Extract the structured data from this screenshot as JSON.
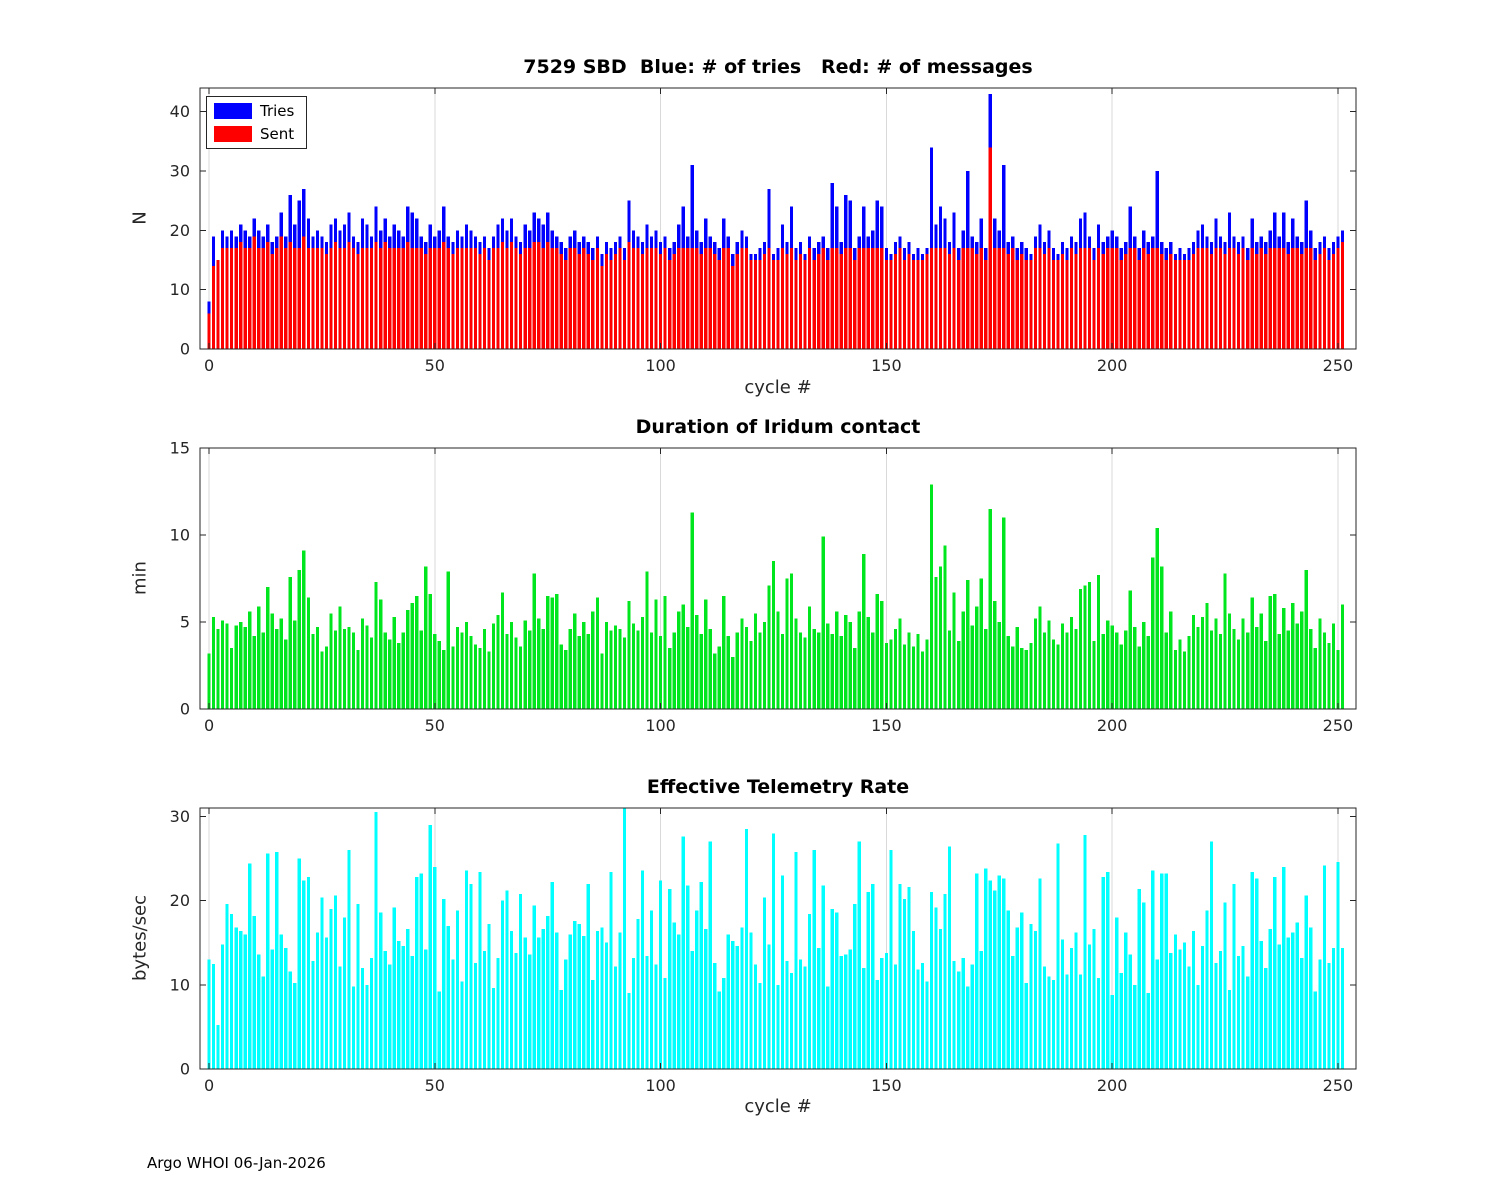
{
  "figure": {
    "footer": "Argo WHOI 06-Jan-2026",
    "background": "#ffffff",
    "axis_color": "#262626",
    "grid_color": "#d9d9d9"
  },
  "chart_data": [
    {
      "id": "sbd",
      "type": "bar",
      "title": "7529 SBD  Blue: # of tries   Red: # of messages",
      "xlabel": "cycle #",
      "ylabel": "N",
      "x_start": 0,
      "xlim": [
        -2,
        254
      ],
      "ylim": [
        0,
        44
      ],
      "xticks": [
        0,
        50,
        100,
        150,
        200,
        250
      ],
      "yticks": [
        0,
        10,
        20,
        30,
        40
      ],
      "grid": "vertical",
      "legend": {
        "position": "northwest"
      },
      "series": [
        {
          "name": "Tries",
          "color": "#0000ff",
          "values": [
            8,
            19,
            15,
            20,
            19,
            20,
            19,
            21,
            20,
            19,
            22,
            20,
            19,
            21,
            18,
            19,
            23,
            19,
            26,
            21,
            25,
            27,
            22,
            19,
            20,
            19,
            18,
            21,
            22,
            20,
            21,
            23,
            19,
            18,
            22,
            21,
            19,
            24,
            20,
            22,
            19,
            21,
            20,
            19,
            24,
            23,
            22,
            19,
            18,
            21,
            19,
            20,
            24,
            19,
            18,
            20,
            19,
            21,
            20,
            19,
            18,
            19,
            17,
            19,
            21,
            22,
            20,
            22,
            19,
            18,
            21,
            20,
            23,
            22,
            21,
            23,
            20,
            19,
            18,
            17,
            19,
            20,
            18,
            19,
            18,
            17,
            19,
            16,
            18,
            17,
            18,
            19,
            17,
            25,
            20,
            19,
            18,
            21,
            19,
            20,
            18,
            19,
            17,
            18,
            21,
            24,
            19,
            31,
            20,
            18,
            22,
            19,
            18,
            17,
            22,
            19,
            16,
            18,
            20,
            19,
            16,
            16,
            17,
            18,
            27,
            16,
            17,
            21,
            18,
            24,
            17,
            18,
            16,
            19,
            17,
            18,
            19,
            17,
            28,
            24,
            18,
            26,
            25,
            17,
            19,
            24,
            19,
            20,
            25,
            24,
            17,
            16,
            18,
            19,
            17,
            18,
            16,
            17,
            16,
            17,
            34,
            21,
            24,
            22,
            18,
            23,
            17,
            20,
            30,
            19,
            18,
            22,
            17,
            43,
            22,
            20,
            31,
            18,
            19,
            17,
            18,
            17,
            16,
            19,
            21,
            18,
            20,
            17,
            16,
            18,
            17,
            19,
            18,
            22,
            23,
            19,
            17,
            21,
            18,
            19,
            20,
            19,
            17,
            18,
            24,
            19,
            17,
            20,
            18,
            19,
            30,
            18,
            17,
            18,
            16,
            17,
            16,
            17,
            18,
            20,
            21,
            19,
            18,
            22,
            19,
            18,
            23,
            19,
            18,
            19,
            17,
            22,
            18,
            19,
            18,
            20,
            23,
            19,
            23,
            18,
            22,
            19,
            18,
            25,
            20,
            17,
            18,
            19,
            17,
            18,
            19,
            20
          ]
        },
        {
          "name": "Sent",
          "color": "#ff0000",
          "values": [
            6,
            14,
            15,
            17,
            17,
            17,
            17,
            18,
            17,
            17,
            19,
            17,
            17,
            18,
            16,
            17,
            19,
            17,
            18,
            17,
            17,
            19,
            17,
            17,
            17,
            17,
            16,
            17,
            18,
            17,
            17,
            18,
            17,
            16,
            17,
            17,
            17,
            18,
            17,
            18,
            17,
            17,
            17,
            17,
            18,
            17,
            17,
            17,
            16,
            17,
            17,
            17,
            18,
            17,
            16,
            17,
            17,
            17,
            17,
            17,
            16,
            17,
            15,
            17,
            17,
            18,
            17,
            18,
            17,
            16,
            17,
            17,
            18,
            18,
            17,
            18,
            17,
            17,
            16,
            15,
            17,
            17,
            16,
            17,
            16,
            15,
            17,
            14,
            16,
            15,
            16,
            17,
            15,
            18,
            17,
            17,
            16,
            17,
            17,
            17,
            16,
            17,
            15,
            16,
            17,
            17,
            17,
            17,
            17,
            16,
            17,
            17,
            16,
            15,
            17,
            17,
            14,
            16,
            17,
            17,
            15,
            15,
            15,
            16,
            17,
            15,
            15,
            17,
            16,
            17,
            15,
            16,
            15,
            17,
            15,
            16,
            17,
            15,
            17,
            17,
            16,
            17,
            17,
            15,
            17,
            17,
            17,
            17,
            17,
            17,
            15,
            15,
            16,
            17,
            15,
            16,
            15,
            15,
            15,
            16,
            17,
            17,
            17,
            17,
            16,
            17,
            15,
            17,
            17,
            17,
            16,
            17,
            15,
            34,
            17,
            17,
            17,
            16,
            17,
            15,
            16,
            15,
            15,
            17,
            17,
            16,
            17,
            15,
            15,
            16,
            15,
            17,
            16,
            17,
            17,
            17,
            15,
            17,
            16,
            17,
            17,
            17,
            15,
            16,
            17,
            17,
            15,
            17,
            16,
            17,
            17,
            16,
            15,
            16,
            15,
            15,
            15,
            15,
            16,
            17,
            17,
            17,
            16,
            17,
            17,
            16,
            17,
            17,
            16,
            17,
            15,
            17,
            16,
            17,
            16,
            17,
            17,
            17,
            17,
            16,
            17,
            17,
            16,
            17,
            17,
            15,
            16,
            17,
            15,
            16,
            17,
            18
          ]
        }
      ]
    },
    {
      "id": "duration",
      "type": "bar",
      "title": "Duration of Iridum contact",
      "xlabel": "",
      "ylabel": "min",
      "x_start": 0,
      "xlim": [
        -2,
        254
      ],
      "ylim": [
        0,
        15
      ],
      "xticks": [
        0,
        50,
        100,
        150,
        200,
        250
      ],
      "yticks": [
        0,
        5,
        10,
        15
      ],
      "grid": "vertical",
      "series": [
        {
          "name": "Duration",
          "color": "#00e61e",
          "values": [
            3.2,
            5.3,
            4.6,
            5.1,
            4.9,
            3.5,
            4.8,
            5.0,
            4.7,
            5.6,
            4.2,
            5.9,
            4.4,
            7.0,
            5.5,
            4.6,
            5.2,
            4.0,
            7.6,
            5.1,
            8.0,
            9.1,
            6.4,
            4.3,
            4.7,
            3.3,
            3.6,
            5.5,
            4.5,
            5.9,
            4.6,
            4.7,
            4.4,
            3.4,
            5.2,
            4.8,
            4.1,
            7.3,
            6.3,
            4.4,
            4.0,
            5.3,
            3.8,
            4.4,
            5.7,
            6.1,
            6.5,
            4.5,
            8.2,
            6.6,
            4.3,
            3.9,
            3.4,
            7.9,
            3.6,
            4.7,
            4.4,
            5.0,
            4.2,
            3.7,
            3.5,
            4.6,
            3.3,
            4.9,
            5.4,
            6.7,
            4.3,
            5.0,
            4.1,
            3.6,
            5.1,
            4.5,
            7.8,
            5.2,
            4.6,
            6.5,
            6.4,
            6.6,
            3.7,
            3.4,
            4.6,
            5.5,
            4.2,
            5.0,
            4.3,
            5.6,
            6.4,
            3.2,
            5.0,
            4.5,
            4.8,
            4.6,
            4.1,
            6.2,
            4.9,
            4.5,
            5.3,
            7.9,
            4.4,
            6.3,
            4.2,
            6.5,
            3.5,
            4.4,
            5.6,
            6.0,
            4.7,
            11.3,
            5.4,
            4.3,
            6.3,
            4.6,
            3.2,
            3.6,
            6.5,
            4.2,
            3.0,
            4.4,
            5.2,
            4.7,
            3.9,
            5.5,
            4.4,
            5.0,
            7.1,
            8.5,
            5.6,
            4.3,
            7.5,
            7.8,
            5.2,
            4.4,
            4.1,
            5.9,
            4.6,
            4.4,
            9.9,
            4.9,
            4.3,
            5.6,
            4.2,
            5.4,
            5.0,
            3.5,
            5.6,
            8.9,
            5.3,
            4.4,
            6.6,
            6.2,
            3.8,
            4.0,
            4.6,
            5.2,
            3.7,
            4.4,
            3.6,
            4.3,
            3.3,
            4.0,
            12.9,
            7.6,
            8.2,
            9.4,
            4.5,
            6.7,
            3.9,
            5.6,
            7.4,
            4.8,
            5.9,
            7.5,
            4.6,
            11.5,
            6.2,
            5.0,
            11.0,
            4.2,
            3.6,
            4.7,
            3.5,
            3.4,
            3.8,
            5.2,
            5.9,
            4.4,
            5.1,
            4.0,
            3.7,
            4.9,
            4.4,
            5.3,
            4.6,
            6.9,
            7.1,
            7.3,
            3.9,
            7.7,
            4.3,
            5.1,
            4.8,
            4.4,
            3.7,
            4.5,
            6.8,
            4.7,
            3.6,
            5.0,
            4.2,
            8.7,
            10.4,
            8.2,
            4.4,
            5.6,
            3.4,
            4.0,
            3.3,
            4.2,
            5.4,
            4.7,
            5.3,
            6.1,
            4.5,
            5.2,
            4.3,
            7.8,
            5.5,
            4.6,
            4.0,
            5.2,
            4.4,
            6.4,
            4.7,
            5.5,
            3.9,
            6.5,
            6.6,
            4.3,
            5.8,
            4.5,
            6.1,
            4.9,
            5.6,
            8.0,
            4.6,
            3.5,
            5.2,
            4.4,
            3.8,
            4.9,
            3.4,
            6.0
          ]
        }
      ]
    },
    {
      "id": "rate",
      "type": "bar",
      "title": "Effective Telemetry Rate",
      "xlabel": "cycle #",
      "ylabel": "bytes/sec",
      "x_start": 0,
      "xlim": [
        -2,
        254
      ],
      "ylim": [
        0,
        31
      ],
      "xticks": [
        0,
        50,
        100,
        150,
        200,
        250
      ],
      "yticks": [
        0,
        10,
        20,
        30
      ],
      "grid": "vertical",
      "series": [
        {
          "name": "Rate",
          "color": "#00ffff",
          "values": [
            13.0,
            12.5,
            5.2,
            14.8,
            19.6,
            18.4,
            16.8,
            16.4,
            16.0,
            24.4,
            18.2,
            13.6,
            11.0,
            25.6,
            14.2,
            25.8,
            16.0,
            14.4,
            11.6,
            10.2,
            25.0,
            22.4,
            22.8,
            12.8,
            16.2,
            20.4,
            15.6,
            19.0,
            20.6,
            12.2,
            18.0,
            26.0,
            9.8,
            19.6,
            12.0,
            10.0,
            13.2,
            30.5,
            18.6,
            14.0,
            12.4,
            19.2,
            15.2,
            14.6,
            16.6,
            13.4,
            22.8,
            23.2,
            14.2,
            29.0,
            24.0,
            9.2,
            20.2,
            17.0,
            13.0,
            18.8,
            10.4,
            23.6,
            22.0,
            12.6,
            23.4,
            14.0,
            17.2,
            9.6,
            13.2,
            20.0,
            21.2,
            16.4,
            13.8,
            20.8,
            15.6,
            13.6,
            19.4,
            15.6,
            16.6,
            18.2,
            22.2,
            16.2,
            9.4,
            13.0,
            16.0,
            17.6,
            17.2,
            15.8,
            22.0,
            10.6,
            16.4,
            16.8,
            15.0,
            23.4,
            12.2,
            16.2,
            31.0,
            9.0,
            13.2,
            17.8,
            23.6,
            13.4,
            18.8,
            12.4,
            22.4,
            10.8,
            21.4,
            17.4,
            16.0,
            27.6,
            21.8,
            14.0,
            18.8,
            22.2,
            16.6,
            27.0,
            12.6,
            9.2,
            10.8,
            16.0,
            15.2,
            14.6,
            16.8,
            28.5,
            16.2,
            12.4,
            10.2,
            20.4,
            14.8,
            28.0,
            10.0,
            23.0,
            12.8,
            11.4,
            25.8,
            13.0,
            12.2,
            18.4,
            26.0,
            14.4,
            21.8,
            9.8,
            19.0,
            18.6,
            13.4,
            13.6,
            14.2,
            19.6,
            27.0,
            12.0,
            21.0,
            22.0,
            10.6,
            13.2,
            13.8,
            26.0,
            12.4,
            22.0,
            20.2,
            21.6,
            16.4,
            11.8,
            12.6,
            10.4,
            21.0,
            19.2,
            16.6,
            20.8,
            26.4,
            12.8,
            11.6,
            13.2,
            9.8,
            12.4,
            23.2,
            14.0,
            23.8,
            22.4,
            21.2,
            23.0,
            22.6,
            18.8,
            13.4,
            16.8,
            18.6,
            10.2,
            17.2,
            16.4,
            22.6,
            12.2,
            11.0,
            10.6,
            26.8,
            15.4,
            11.2,
            14.4,
            16.2,
            11.2,
            27.8,
            14.8,
            16.6,
            10.8,
            22.8,
            23.4,
            8.8,
            18.0,
            11.4,
            16.2,
            13.6,
            10.0,
            21.4,
            19.8,
            9.0,
            23.6,
            13.0,
            23.2,
            23.2,
            13.8,
            16.0,
            14.2,
            15.0,
            12.2,
            16.4,
            10.0,
            14.6,
            18.8,
            27.0,
            12.6,
            14.0,
            19.8,
            9.4,
            22.0,
            13.4,
            14.6,
            11.0,
            23.4,
            22.6,
            15.2,
            12.0,
            16.6,
            22.8,
            14.8,
            24.0,
            15.6,
            16.2,
            17.4,
            13.2,
            20.6,
            16.8,
            9.2,
            13.0,
            24.2,
            12.6,
            14.4,
            24.6,
            14.4
          ]
        }
      ]
    }
  ]
}
